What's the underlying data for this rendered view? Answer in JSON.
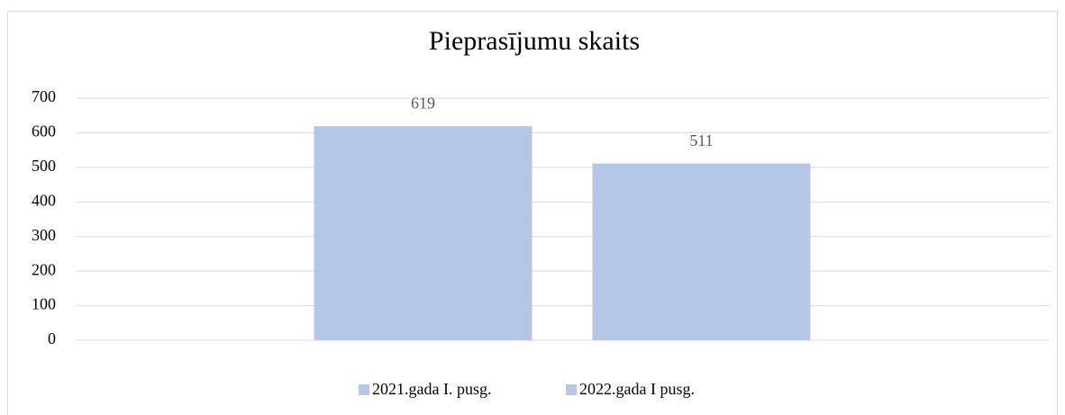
{
  "chart_data": {
    "type": "bar",
    "title": "Pieprasījumu skaits",
    "categories": [
      null
    ],
    "series": [
      {
        "name": "2021.gada I. pusg.",
        "color": "#b4c7e7",
        "values": [
          619
        ]
      },
      {
        "name": "2022.gada I pusg.",
        "color": "#b4c7e7",
        "values": [
          511
        ]
      }
    ],
    "ylim": [
      0,
      700
    ],
    "yticks": [
      0,
      100,
      200,
      300,
      400,
      500,
      600,
      700
    ],
    "grid": true,
    "legend": "bottom"
  }
}
